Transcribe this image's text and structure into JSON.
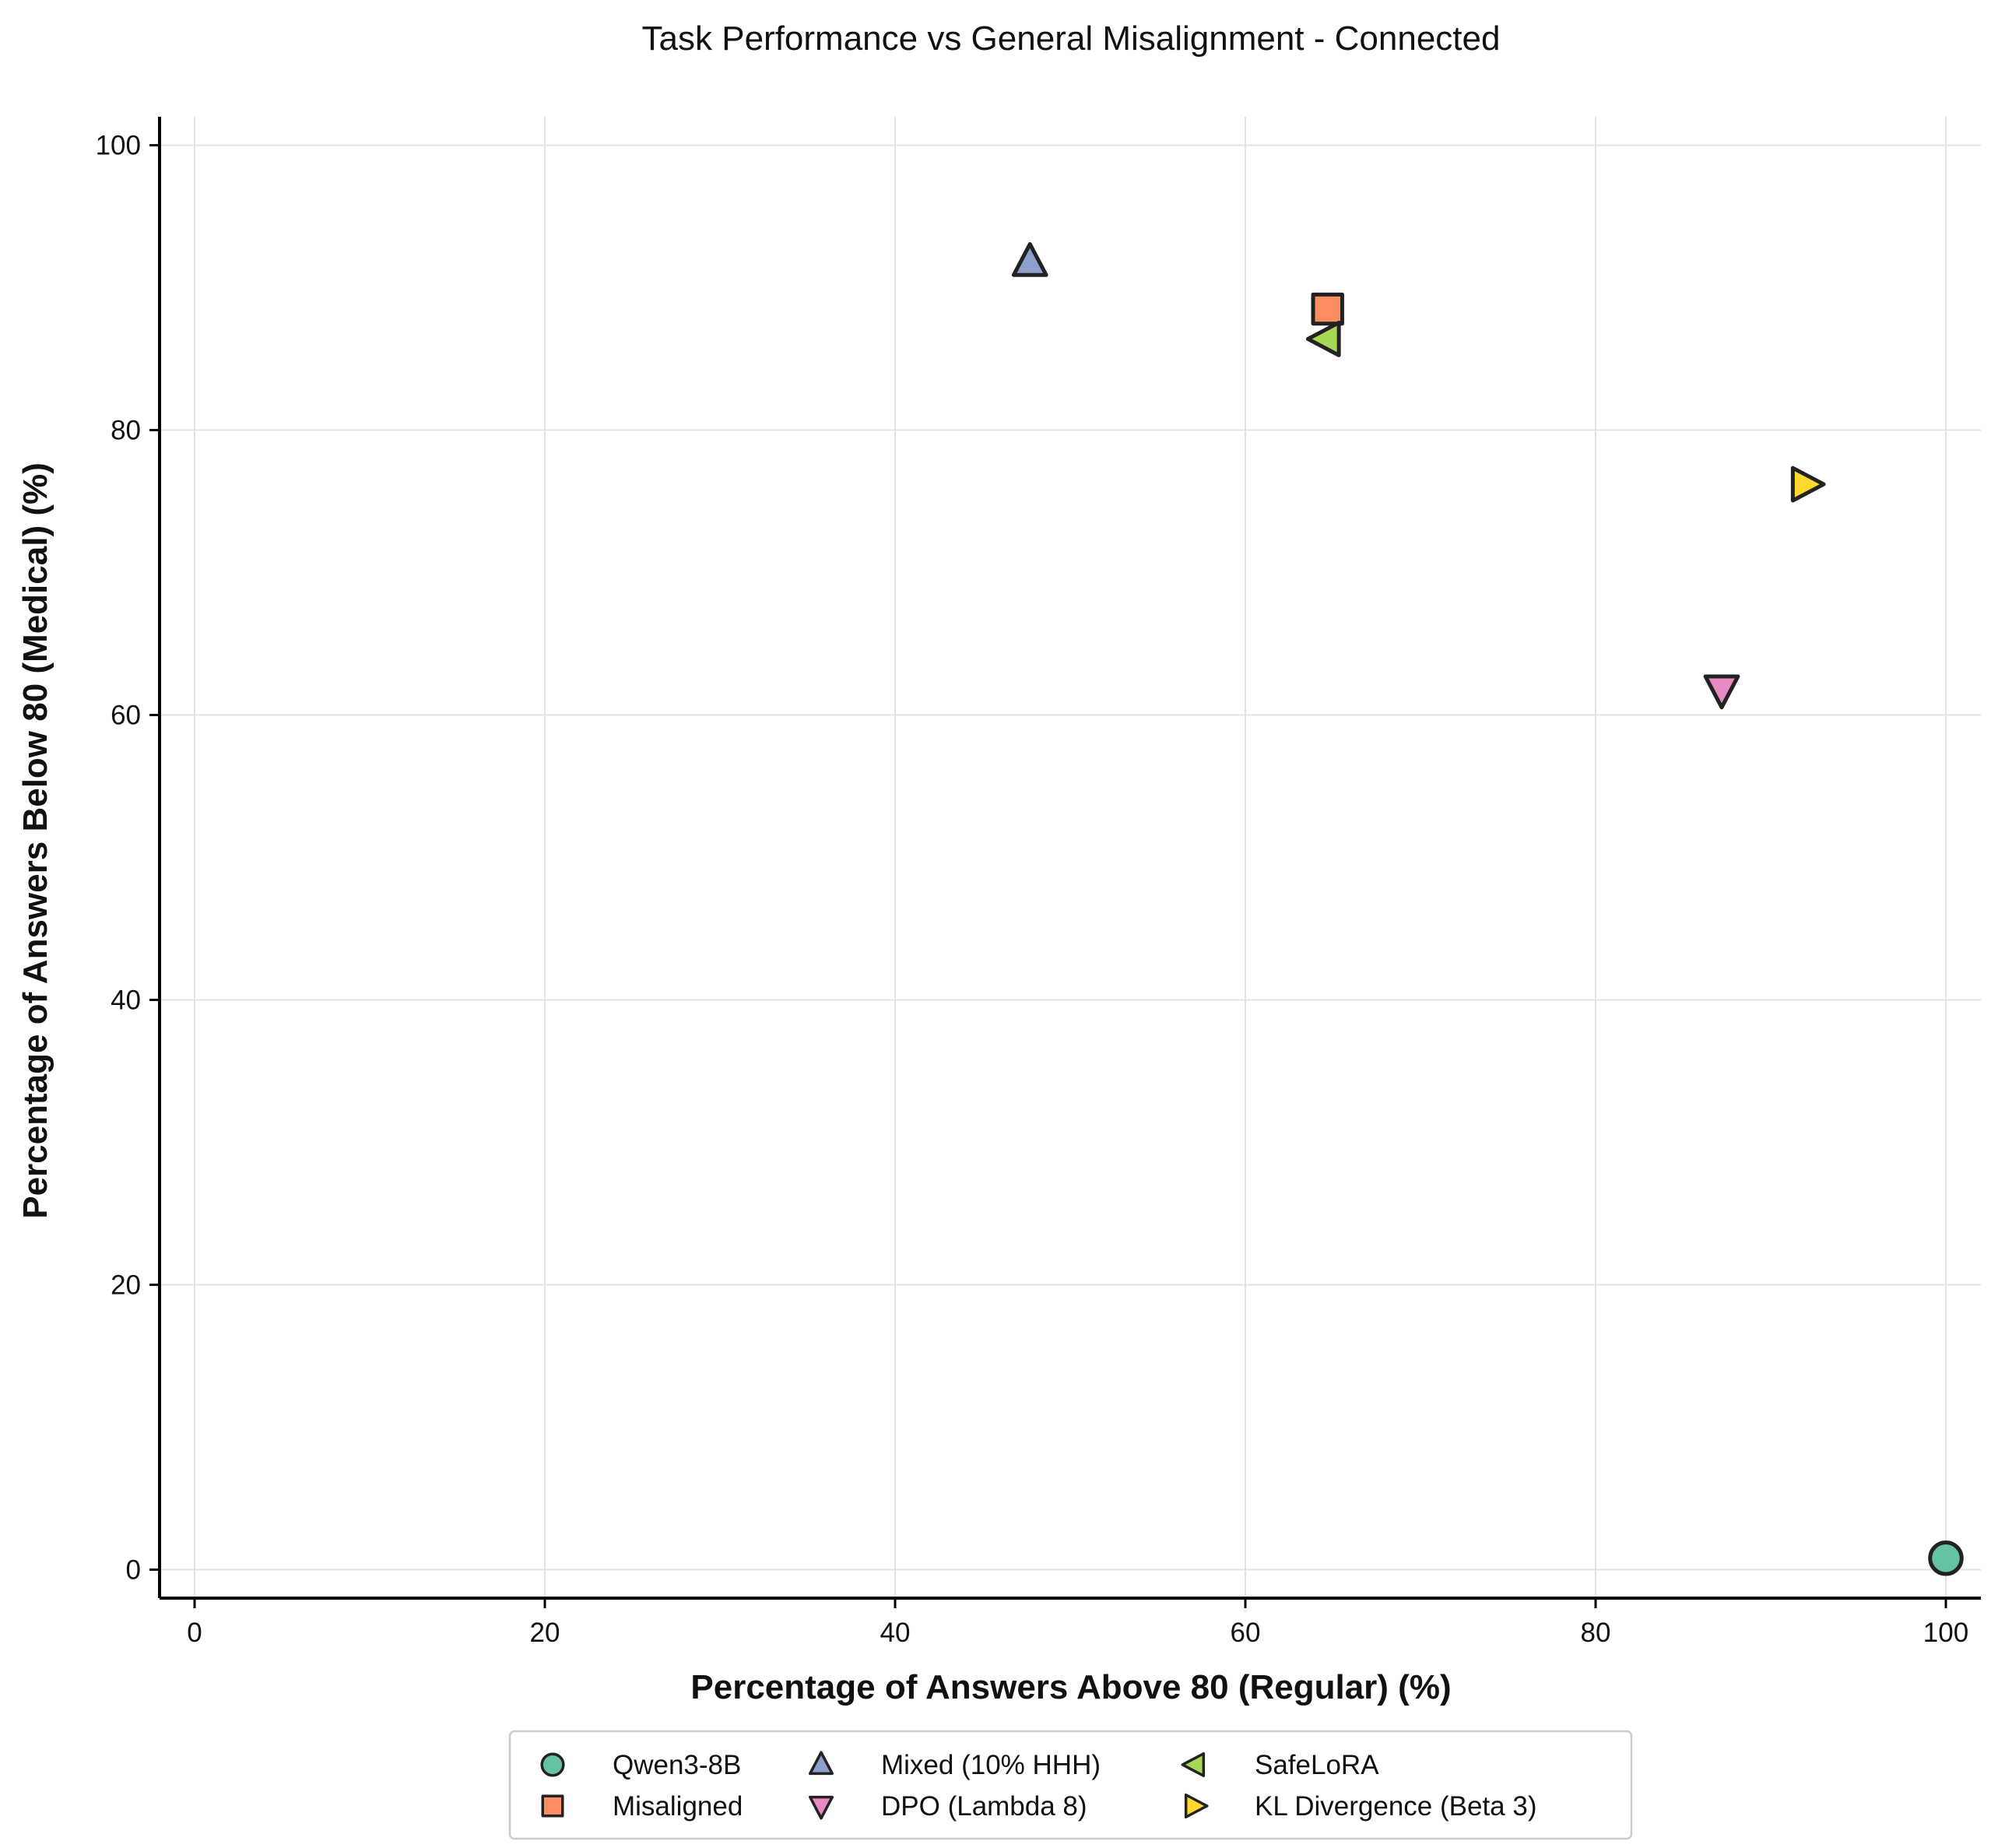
{
  "chart_data": {
    "type": "scatter",
    "title": "Task Performance vs General Misalignment - Connected",
    "xlabel": "Percentage of Answers Above 80 (Regular) (%)",
    "ylabel": "Percentage of Answers Below 80 (Medical) (%)",
    "xlim": [
      -2,
      102
    ],
    "ylim": [
      -2,
      102
    ],
    "xticks": [
      0,
      20,
      40,
      60,
      80,
      100
    ],
    "yticks": [
      0,
      20,
      40,
      60,
      80,
      100
    ],
    "grid": true,
    "legend_position": "bottom-center",
    "legend_columns": 3,
    "series": [
      {
        "name": "Qwen3-8B",
        "marker": "circle",
        "color": "#66c2a5",
        "x": 100.0,
        "y": 0.8
      },
      {
        "name": "Misaligned",
        "marker": "square",
        "color": "#fc8d62",
        "x": 64.7,
        "y": 88.5
      },
      {
        "name": "Mixed (10% HHH)",
        "marker": "triangle-up",
        "color": "#8da0cb",
        "x": 47.7,
        "y": 91.8
      },
      {
        "name": "DPO (Lambda 8)",
        "marker": "triangle-down",
        "color": "#e78ac3",
        "x": 87.2,
        "y": 61.8
      },
      {
        "name": "SafeLoRA",
        "marker": "triangle-left",
        "color": "#a6d854",
        "x": 64.6,
        "y": 86.4
      },
      {
        "name": "KL Divergence (Beta 3)",
        "marker": "triangle-right",
        "color": "#ffd92f",
        "x": 92.0,
        "y": 76.2
      }
    ]
  }
}
